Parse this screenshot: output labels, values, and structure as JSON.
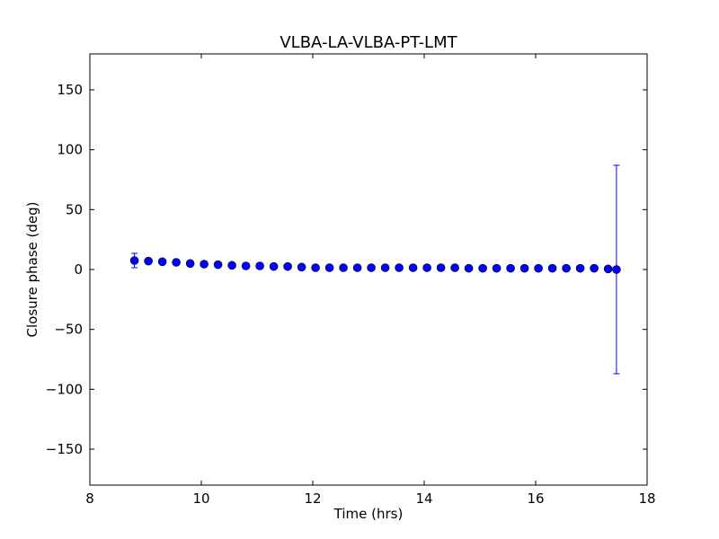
{
  "chart_data": {
    "type": "scatter",
    "title": "VLBA-LA-VLBA-PT-LMT",
    "xlabel": "Time (hrs)",
    "ylabel": "Closure phase (deg)",
    "xlim": [
      8,
      18
    ],
    "ylim": [
      -180,
      180
    ],
    "grid": false,
    "xticks": [
      8,
      10,
      12,
      14,
      16,
      18
    ],
    "xtick_labels": [
      "8",
      "10",
      "12",
      "14",
      "16",
      "18"
    ],
    "yticks": [
      -150,
      -100,
      -50,
      0,
      50,
      100,
      150
    ],
    "ytick_labels": [
      "−150",
      "−100",
      "−50",
      "0",
      "50",
      "100",
      "150"
    ],
    "marker_color": "#0000ff",
    "series": [
      {
        "x": [
          8.8,
          9.05,
          9.3,
          9.55,
          9.8,
          10.05,
          10.3,
          10.55,
          10.8,
          11.05,
          11.3,
          11.55,
          11.8,
          12.05,
          12.3,
          12.55,
          12.8,
          13.05,
          13.3,
          13.55,
          13.8,
          14.05,
          14.3,
          14.55,
          14.8,
          15.05,
          15.3,
          15.55,
          15.8,
          16.05,
          16.3,
          16.55,
          16.8,
          17.05,
          17.3,
          17.45
        ],
        "y": [
          7.5,
          7,
          6.5,
          6,
          5,
          4.5,
          4,
          3.5,
          3,
          3,
          2.5,
          2.5,
          2,
          1.5,
          1.5,
          1.5,
          1.5,
          1.5,
          1.5,
          1.5,
          1.5,
          1.5,
          1.5,
          1.5,
          1,
          1,
          1,
          1,
          1,
          1,
          1,
          1,
          1,
          1,
          0.5,
          0
        ],
        "yerr": [
          6,
          0,
          0,
          0,
          0,
          0,
          0,
          0,
          0,
          0,
          0,
          0,
          0,
          0,
          0,
          0,
          0,
          0,
          0,
          0,
          0,
          0,
          0,
          0,
          0,
          0,
          0,
          0,
          0,
          0,
          0,
          0,
          0,
          0,
          0,
          87
        ]
      }
    ]
  }
}
